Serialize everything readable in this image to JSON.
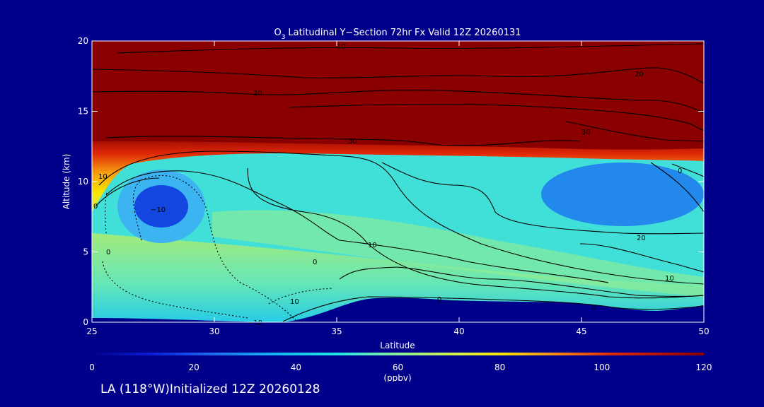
{
  "chart_data": {
    "type": "heatmap",
    "title": "Latitudinal Y−Section 72hr  Fx Valid 12Z 20260131",
    "title_chem_base": "O",
    "title_chem_sub": "3",
    "xlabel": "Latitude",
    "ylabel": "Altitude (km)",
    "xlim": [
      25,
      50
    ],
    "ylim": [
      0,
      20
    ],
    "x_ticks": [
      25,
      30,
      35,
      40,
      45,
      50
    ],
    "y_ticks": [
      0,
      5,
      10,
      15,
      20
    ],
    "colorbar": {
      "ticks": [
        0,
        20,
        40,
        60,
        80,
        100,
        120
      ],
      "unit": "(ppbv)",
      "range": [
        0,
        120
      ]
    },
    "contour_labels": [
      "10",
      "20",
      "30",
      "30",
      "20",
      "10",
      "10",
      "0",
      "0",
      "−10",
      "0",
      "−10",
      "10",
      "20",
      "10",
      "0",
      "0",
      "0"
    ],
    "grid": false,
    "legend": "colorbar-bottom"
  },
  "footer": "LA (118°W)Initialized 12Z 20260128",
  "colors": {
    "background": "#00008a",
    "axes_text": "#ffffff",
    "contour": "#000000"
  }
}
